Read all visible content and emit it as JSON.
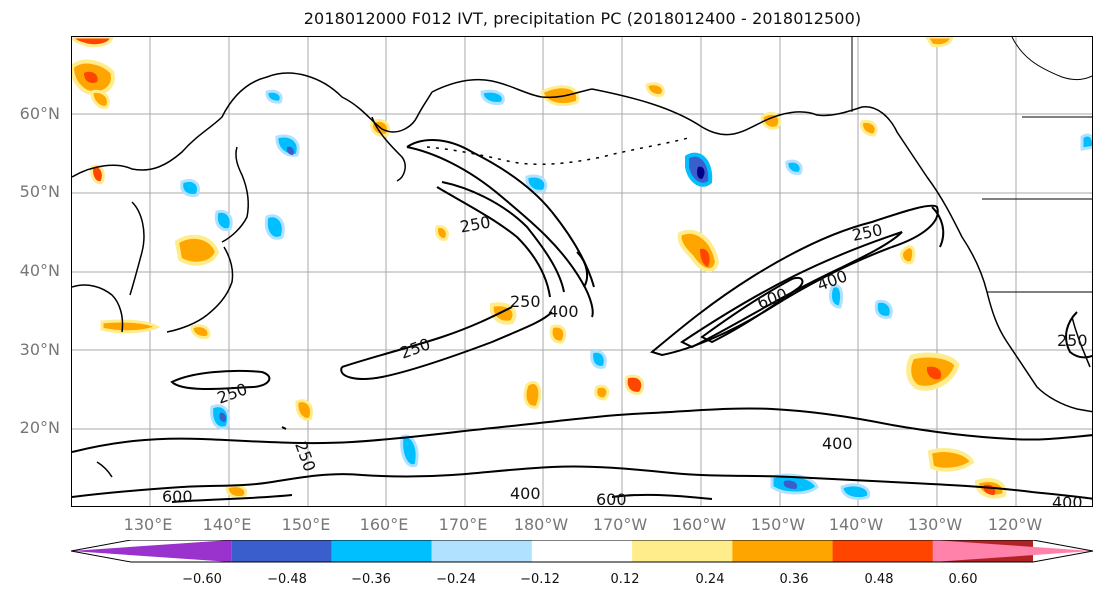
{
  "title": "2018012000 F012 IVT, precipitation PC (2018012400 - 2018012500)",
  "lat_labels": [
    "60°N",
    "50°N",
    "40°N",
    "30°N",
    "20°N"
  ],
  "lon_labels": [
    "130°E",
    "140°E",
    "150°E",
    "160°E",
    "170°E",
    "180°W",
    "170°W",
    "160°W",
    "150°W",
    "140°W",
    "130°W",
    "120°W"
  ],
  "contour_labels": [
    "250",
    "250",
    "400",
    "250",
    "600",
    "400",
    "250",
    "250",
    "250",
    "250",
    "600",
    "400",
    "600",
    "400",
    "250",
    "400"
  ],
  "colorbar": {
    "ticks": [
      "−0.60",
      "−0.48",
      "−0.36",
      "−0.24",
      "−0.12",
      "0.12",
      "0.24",
      "0.36",
      "0.48",
      "0.60"
    ],
    "colors": [
      "#9a32cd",
      "#00008b",
      "#3a5fcd",
      "#00bfff",
      "#b0e2ff",
      "#ffffff",
      "#ffec8b",
      "#ffa500",
      "#ff4500",
      "#b22222",
      "#ff82ab"
    ]
  },
  "map_colors": {
    "land_outline": "#000000",
    "grid": "#999999",
    "contour": "#000000"
  }
}
